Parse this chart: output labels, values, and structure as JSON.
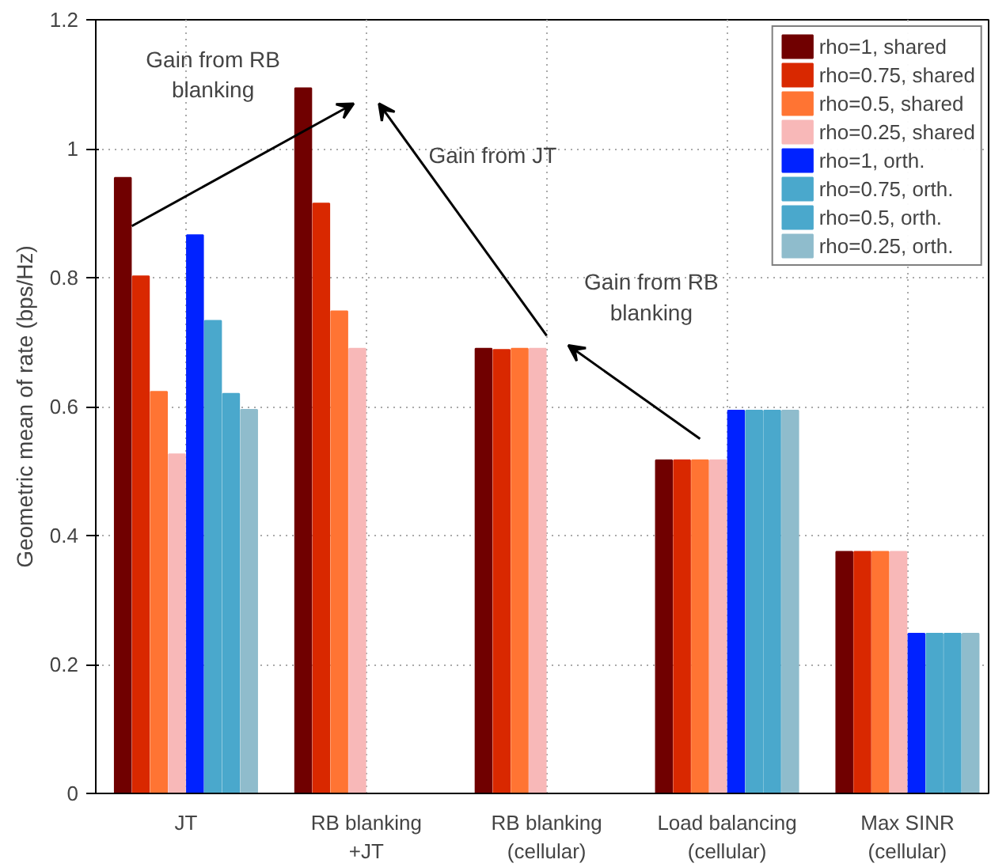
{
  "chart_data": {
    "type": "bar",
    "ylabel": "Geometric mean of rate (bps/Hz)",
    "categories": [
      "JT",
      "RB blanking\n+JT",
      "RB blanking\n(cellular)",
      "Load balancing\n(cellular)",
      "Max SINR\n(cellular)"
    ],
    "series": [
      {
        "name": "rho=1, shared",
        "color": "#700000",
        "values": [
          0.955,
          1.094,
          0.69,
          0.517,
          0.375
        ]
      },
      {
        "name": "rho=0.75, shared",
        "color": "#d92800",
        "values": [
          0.802,
          0.915,
          0.688,
          0.517,
          0.375
        ]
      },
      {
        "name": "rho=0.5, shared",
        "color": "#ff7433",
        "values": [
          0.623,
          0.748,
          0.69,
          0.517,
          0.375
        ]
      },
      {
        "name": "rho=0.25, shared",
        "color": "#f8b8b8",
        "values": [
          0.526,
          0.69,
          0.69,
          0.517,
          0.375
        ]
      },
      {
        "name": "rho=1, orth.",
        "color": "#0022ff",
        "values": [
          0.866,
          0,
          0,
          0.594,
          0.248
        ]
      },
      {
        "name": "rho=0.75, orth.",
        "color": "#4aa8cc",
        "values": [
          0.733,
          0,
          0,
          0.594,
          0.248
        ]
      },
      {
        "name": "rho=0.5, orth.",
        "color": "#4aa8cc",
        "values": [
          0.62,
          0,
          0,
          0.594,
          0.248
        ]
      },
      {
        "name": "rho=0.25, orth.",
        "color": "#8fbccc",
        "values": [
          0.595,
          0,
          0,
          0.594,
          0.248
        ]
      }
    ],
    "ylim": [
      0,
      1.2
    ],
    "yticks": [
      0,
      0.2,
      0.4,
      0.6,
      0.8,
      1,
      1.2
    ],
    "grid": true,
    "legend": "top right",
    "annotations": [
      "Gain from RB\nblanking",
      "Gain from JT",
      "Gain from RB\nblanking"
    ]
  }
}
